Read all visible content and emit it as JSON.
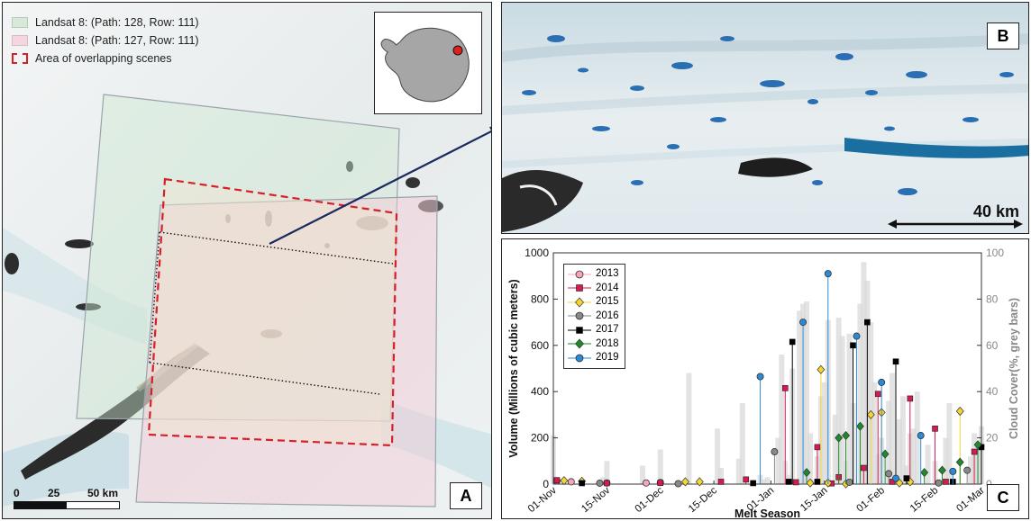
{
  "panel_a": {
    "letter": "A",
    "legend": [
      {
        "label": "Landsat 8: (Path: 128, Row: 111)",
        "color": "#d7ead9"
      },
      {
        "label": "Landsat 8: (Path: 127, Row: 111)",
        "color": "#f5d6de"
      },
      {
        "label": "Area of overlapping scenes",
        "color": "#d62027"
      }
    ],
    "scale_labels": [
      "0",
      "25",
      "50 km"
    ],
    "inset_icon": "antarctica-map-icon"
  },
  "panel_b": {
    "letter": "B",
    "scale_label": "40 km"
  },
  "panel_c": {
    "letter": "C",
    "chart_data": {
      "type": "stem",
      "xlabel": "Melt Season",
      "ylabel": "Volume (Millions of cubic meters)",
      "ylabel_right": "Cloud Cover(%, grey bars)",
      "ylim": [
        0,
        1000
      ],
      "ylim_right": [
        0,
        100
      ],
      "y_ticks": [
        "0",
        "200",
        "400",
        "600",
        "800",
        "1000"
      ],
      "y_ticks_right": [
        "0",
        "20",
        "40",
        "60",
        "80",
        "100"
      ],
      "x_ticks": [
        "01-Nov",
        "15-Nov",
        "01-Dec",
        "15-Dec",
        "01-Jan",
        "15-Jan",
        "01-Feb",
        "15-Feb",
        "01-Mar"
      ],
      "legend_placement": "top-left",
      "cloud_cover": {
        "day": [
          0,
          14,
          15,
          25,
          30,
          38,
          46,
          47,
          52,
          53,
          58,
          59,
          60,
          63,
          64,
          65,
          66,
          67,
          69,
          70,
          71,
          72,
          74,
          75,
          76,
          77,
          79,
          80,
          81,
          82,
          83,
          84,
          86,
          87,
          88,
          89,
          90,
          91,
          92,
          94,
          95,
          97,
          98,
          99,
          100,
          101,
          102,
          105,
          107,
          110,
          111,
          117,
          118,
          119,
          120
        ],
        "values": [
          21,
          3,
          10,
          8,
          15,
          48,
          24,
          7,
          11,
          35,
          4,
          2,
          3,
          20,
          56,
          10,
          4,
          50,
          75,
          78,
          79,
          22,
          12,
          38,
          44,
          71,
          30,
          72,
          64,
          10,
          65,
          35,
          78,
          96,
          88,
          70,
          44,
          13,
          20,
          36,
          48,
          28,
          38,
          8,
          22,
          24,
          40,
          17,
          10,
          20,
          35,
          12,
          22,
          17,
          25
        ]
      },
      "series": [
        {
          "name": "2013",
          "color": "#f4a6b8",
          "marker": "circle",
          "day": [
            1,
            5,
            15,
            26,
            30
          ],
          "values": [
            14,
            10,
            5,
            5,
            7
          ]
        },
        {
          "name": "2014",
          "color": "#d61a50",
          "marker": "square",
          "day": [
            1,
            15,
            30,
            47,
            54,
            65,
            68,
            74,
            78,
            80,
            87,
            91,
            95,
            100,
            107,
            110,
            118
          ],
          "values": [
            17,
            4,
            5,
            10,
            20,
            415,
            8,
            160,
            3,
            30,
            70,
            390,
            10,
            370,
            240,
            10,
            140
          ]
        },
        {
          "name": "2015",
          "color": "#f4d531",
          "marker": "diamond",
          "day": [
            3,
            8,
            37,
            41,
            72,
            75,
            77,
            82,
            89,
            92,
            97,
            100,
            114
          ],
          "values": [
            15,
            12,
            10,
            10,
            5,
            495,
            5,
            1,
            300,
            310,
            5,
            10,
            315
          ]
        },
        {
          "name": "2016",
          "color": "#888888",
          "marker": "circle",
          "day": [
            13,
            35,
            62,
            83,
            94,
            108,
            116
          ],
          "values": [
            4,
            2,
            140,
            8,
            45,
            5,
            60
          ]
        },
        {
          "name": "2017",
          "color": "#000000",
          "marker": "square",
          "day": [
            8,
            56,
            66,
            67,
            74,
            84,
            88,
            96,
            99,
            112,
            120
          ],
          "values": [
            4,
            4,
            10,
            615,
            10,
            600,
            700,
            530,
            25,
            10,
            160
          ]
        },
        {
          "name": "2018",
          "color": "#1e8a2a",
          "marker": "diamond",
          "day": [
            71,
            80,
            82,
            86,
            93,
            104,
            109,
            114,
            119
          ],
          "values": [
            50,
            200,
            210,
            250,
            130,
            50,
            60,
            95,
            170
          ]
        },
        {
          "name": "2019",
          "color": "#2b8ad6",
          "marker": "circle",
          "day": [
            58,
            70,
            77,
            85,
            92,
            96,
            103,
            112
          ],
          "values": [
            465,
            700,
            910,
            640,
            440,
            25,
            210,
            55
          ]
        }
      ]
    }
  }
}
